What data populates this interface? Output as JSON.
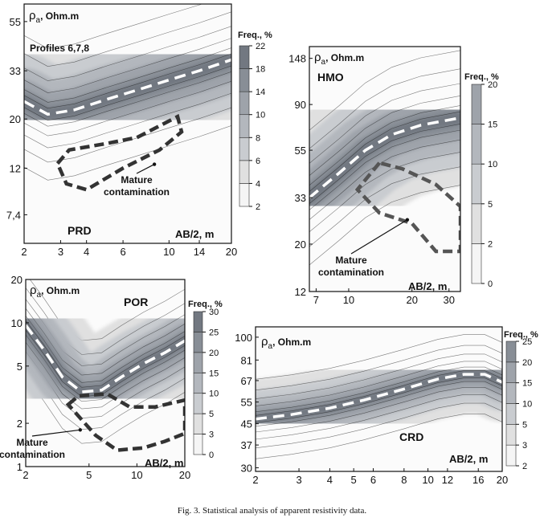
{
  "caption": "Fig. 3. Statistical analysis of apparent resistivity data.",
  "colors": {
    "scale": [
      "#f5f5f5",
      "#e0e0e0",
      "#c9ccd0",
      "#b3b7bd",
      "#9ea3aa",
      "#888e96",
      "#727881",
      "#5c626b"
    ],
    "contour": "#111111",
    "trend": "#ffffff",
    "zone": "#333333",
    "zone_hmo": "#555555"
  },
  "chart_data": [
    {
      "type": "heatmap",
      "id": "prd",
      "label": "PRD",
      "subtitle": "Profiles 6,7,8",
      "ylabel_symbol": "ρ",
      "ylabel_sub": "a",
      "ylabel_unit": ", Ohm.m",
      "xlabel": "AB/2, m",
      "x_scale": "log",
      "y_scale": "log",
      "xlim": [
        2,
        20
      ],
      "ylim": [
        5.5,
        66
      ],
      "xticks": [
        2,
        3,
        4,
        6,
        10,
        14,
        20
      ],
      "xtick_labels": [
        "2",
        "3",
        "4",
        "6",
        "10",
        "14",
        "20"
      ],
      "yticks": [
        7.4,
        12,
        20,
        33,
        55
      ],
      "ytick_labels": [
        "7,4",
        "12",
        "20",
        "33",
        "55"
      ],
      "colorbar": {
        "label": "Freq., %",
        "range": [
          2,
          24
        ],
        "ticks": [
          2,
          4,
          6,
          8,
          10,
          14,
          18,
          22
        ]
      },
      "trend_line": {
        "x": [
          2,
          2.6,
          3.5,
          5,
          7,
          10,
          14,
          20
        ],
        "y": [
          24,
          21,
          22,
          24.5,
          27,
          30,
          33,
          37
        ]
      },
      "annotation": {
        "text": [
          "Mature",
          "contamination"
        ],
        "arrow_to": {
          "x": 8.5,
          "y": 12.5
        }
      },
      "zone": {
        "x": [
          2.9,
          3.3,
          5,
          7,
          11,
          11.5,
          9,
          6,
          4,
          3.2,
          2.9
        ],
        "y": [
          12.6,
          14.5,
          15.5,
          16.5,
          20.5,
          17.5,
          14.5,
          12,
          9.6,
          10.2,
          12.6
        ]
      }
    },
    {
      "type": "heatmap",
      "id": "hmo",
      "label": "HMO",
      "ylabel_symbol": "ρ",
      "ylabel_sub": "a",
      "ylabel_unit": ", Ohm.m",
      "xlabel": "AB/2, m",
      "x_scale": "log",
      "y_scale": "log",
      "xlim": [
        6.5,
        34
      ],
      "ylim": [
        12,
        168
      ],
      "xticks": [
        7,
        10,
        20,
        30
      ],
      "xtick_labels": [
        "7",
        "10",
        "20",
        "30"
      ],
      "yticks": [
        12,
        20,
        33,
        55,
        90,
        148
      ],
      "ytick_labels": [
        "12",
        "20",
        "33",
        "55",
        "90",
        "148"
      ],
      "colorbar": {
        "label": "Freq., %",
        "range": [
          0,
          24
        ],
        "ticks": [
          0,
          2,
          5,
          10,
          15,
          20
        ]
      },
      "trend_line": {
        "x": [
          6.5,
          9,
          12,
          16,
          22,
          34
        ],
        "y": [
          33,
          43,
          55,
          65,
          72,
          78
        ]
      },
      "annotation": {
        "text": [
          "Mature",
          "contamination"
        ],
        "arrow_to": {
          "x": 19,
          "y": 26
        }
      },
      "zone": {
        "x": [
          14,
          12,
          11,
          14,
          20,
          26,
          34,
          34,
          26,
          18,
          14
        ],
        "y": [
          48,
          40,
          36,
          28,
          25,
          18.5,
          18.5,
          30,
          38,
          45,
          48
        ]
      }
    },
    {
      "type": "heatmap",
      "id": "por",
      "label": "POR",
      "ylabel_symbol": "ρ",
      "ylabel_sub": "a",
      "ylabel_unit": ", Ohm.m",
      "xlabel": "AB/2, m",
      "x_scale": "log",
      "y_scale": "log",
      "xlim": [
        2,
        20
      ],
      "ylim": [
        1,
        20
      ],
      "xticks": [
        2,
        5,
        10,
        20
      ],
      "xtick_labels": [
        "2",
        "5",
        "10",
        "20"
      ],
      "yticks": [
        1,
        2,
        5,
        10,
        20
      ],
      "ytick_labels": [
        "1",
        "2",
        "5",
        "10",
        "20"
      ],
      "colorbar": {
        "label": "Freq., %",
        "range": [
          0,
          32
        ],
        "ticks": [
          0,
          3,
          5,
          10,
          15,
          20,
          25,
          30
        ]
      },
      "trend_line": {
        "x": [
          2,
          2.6,
          3.4,
          4.5,
          6,
          8,
          11,
          15,
          20
        ],
        "y": [
          9.6,
          6.5,
          4.2,
          3.3,
          3.4,
          4.2,
          5.2,
          6.2,
          7.5
        ]
      },
      "annotation": {
        "text": [
          "Mature",
          "contamination"
        ],
        "arrow_to": {
          "x": 4.4,
          "y": 1.8
        }
      },
      "zone": {
        "x": [
          3.7,
          4.3,
          6.5,
          9,
          13,
          20,
          20,
          15,
          11,
          7.5,
          5.5,
          3.7
        ],
        "y": [
          2.7,
          3.1,
          3.2,
          2.6,
          2.6,
          2.9,
          1.7,
          1.5,
          1.35,
          1.3,
          1.65,
          2.7
        ]
      }
    },
    {
      "type": "heatmap",
      "id": "crd",
      "label": "CRD",
      "ylabel_symbol": "ρ",
      "ylabel_sub": "a",
      "ylabel_unit": ", Ohm.m",
      "xlabel": "AB/2, m",
      "x_scale": "log",
      "y_scale": "log",
      "xlim": [
        2,
        20
      ],
      "ylim": [
        29,
        110
      ],
      "xticks": [
        2,
        3,
        4,
        5,
        6,
        8,
        10,
        12,
        16,
        20
      ],
      "xtick_labels": [
        "2",
        "3",
        "4",
        "5",
        "6",
        "8",
        "10",
        "12",
        "16",
        "20"
      ],
      "yticks": [
        30,
        37,
        45,
        55,
        67,
        81,
        100
      ],
      "ytick_labels": [
        "30",
        "37",
        "45",
        "55",
        "67",
        "81",
        "100"
      ],
      "colorbar": {
        "label": "Freq., %",
        "range": [
          2,
          28
        ],
        "ticks": [
          2,
          3,
          5,
          10,
          15,
          20,
          25
        ]
      },
      "trend_line": {
        "x": [
          2,
          2.8,
          4,
          5.5,
          8,
          11,
          14,
          17,
          20
        ],
        "y": [
          47,
          49,
          52,
          56,
          62,
          68,
          71,
          71,
          66
        ]
      }
    }
  ]
}
